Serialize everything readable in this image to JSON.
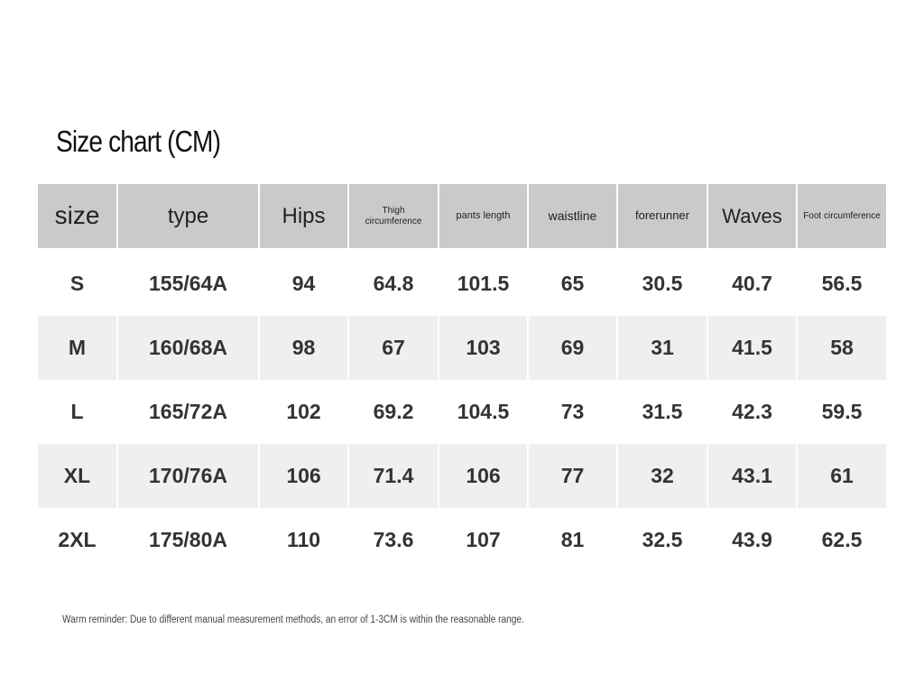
{
  "title": "Size chart (CM)",
  "table": {
    "header": [
      "size",
      "type",
      "Hips",
      "Thigh circumference",
      "pants length",
      "waistline",
      "forerunner",
      "Waves",
      "Foot circumference"
    ],
    "rows": [
      [
        "S",
        "155/64A",
        "94",
        "64.8",
        "101.5",
        "65",
        "30.5",
        "40.7",
        "56.5"
      ],
      [
        "M",
        "160/68A",
        "98",
        "67",
        "103",
        "69",
        "31",
        "41.5",
        "58"
      ],
      [
        "L",
        "165/72A",
        "102",
        "69.2",
        "104.5",
        "73",
        "31.5",
        "42.3",
        "59.5"
      ],
      [
        "XL",
        "170/76A",
        "106",
        "71.4",
        "106",
        "77",
        "32",
        "43.1",
        "61"
      ],
      [
        "2XL",
        "175/80A",
        "110",
        "73.6",
        "107",
        "81",
        "32.5",
        "43.9",
        "62.5"
      ]
    ]
  },
  "note": "Warm reminder: Due to different manual measurement methods, an error of 1-3CM is within the reasonable range."
}
